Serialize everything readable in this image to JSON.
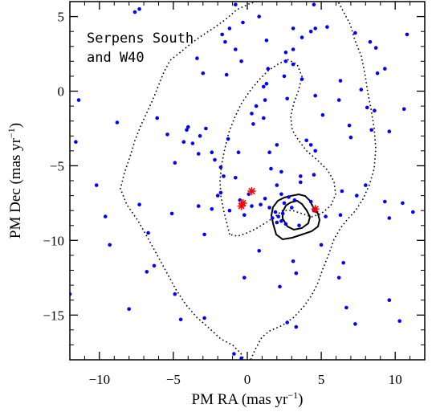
{
  "chart_data": {
    "type": "scatter",
    "xlabel": "PM RA (mas yr",
    "xlabel_sup": "−1",
    "xlabel_end": ")",
    "ylabel": "PM Dec (mas yr",
    "ylabel_sup": "−1",
    "ylabel_end": ")",
    "xlim": [
      -12,
      12
    ],
    "ylim": [
      -18,
      6
    ],
    "x_ticks": [
      -10,
      -5,
      0,
      5,
      10
    ],
    "x_tick_labels": [
      "−10",
      "−5",
      "0",
      "5",
      "10"
    ],
    "y_ticks": [
      -15,
      -10,
      -5,
      0,
      5
    ],
    "y_tick_labels": [
      "−15",
      "−10",
      "−5",
      "0",
      "5"
    ],
    "annotation_lines": [
      "Serpens South",
      "and W40"
    ],
    "colors": {
      "points": "#0000ff",
      "stars": "#ff0000",
      "contour": "#000000"
    },
    "points": [
      [
        -7.3,
        5.5
      ],
      [
        -7.6,
        5.3
      ],
      [
        -0.8,
        5.8
      ],
      [
        -0.3,
        4.6
      ],
      [
        0.8,
        5.0
      ],
      [
        4.5,
        5.8
      ],
      [
        -1.2,
        4.2
      ],
      [
        -1.7,
        3.8
      ],
      [
        -1.5,
        3.3
      ],
      [
        1.3,
        3.4
      ],
      [
        3.1,
        4.2
      ],
      [
        3.7,
        3.6
      ],
      [
        4.3,
        4.0
      ],
      [
        4.6,
        4.2
      ],
      [
        5.4,
        4.3
      ],
      [
        7.3,
        3.9
      ],
      [
        8.3,
        3.3
      ],
      [
        8.7,
        2.9
      ],
      [
        -3.4,
        2.2
      ],
      [
        -0.8,
        2.8
      ],
      [
        2.6,
        2.6
      ],
      [
        3.1,
        2.8
      ],
      [
        2.6,
        2.0
      ],
      [
        2.5,
        1.0
      ],
      [
        3.1,
        1.8
      ],
      [
        3.7,
        0.8
      ],
      [
        6.3,
        0.7
      ],
      [
        8.8,
        1.2
      ],
      [
        9.3,
        1.5
      ],
      [
        10.8,
        3.8
      ],
      [
        -0.4,
        2.0
      ],
      [
        1.4,
        1.5
      ],
      [
        -1.4,
        1.1
      ],
      [
        -3.0,
        1.2
      ],
      [
        1.1,
        0.3
      ],
      [
        1.3,
        0.5
      ],
      [
        1.2,
        -0.6
      ],
      [
        2.7,
        -0.5
      ],
      [
        4.6,
        -0.3
      ],
      [
        5.1,
        -1.6
      ],
      [
        6.2,
        -0.6
      ],
      [
        7.7,
        0.1
      ],
      [
        8.1,
        -1.1
      ],
      [
        8.6,
        -1.3
      ],
      [
        10.6,
        -1.2
      ],
      [
        8.4,
        -2.6
      ],
      [
        9.6,
        -2.7
      ],
      [
        7.0,
        -3.1
      ],
      [
        6.9,
        -2.3
      ],
      [
        -11.4,
        -0.6
      ],
      [
        -11.6,
        -3.4
      ],
      [
        -8.8,
        -2.1
      ],
      [
        -6.1,
        -1.8
      ],
      [
        -5.4,
        -2.9
      ],
      [
        -4.0,
        -2.4
      ],
      [
        -4.3,
        -3.4
      ],
      [
        -3.2,
        -3.0
      ],
      [
        -2.8,
        -2.5
      ],
      [
        -1.3,
        -3.2
      ],
      [
        -0.6,
        -4.1
      ],
      [
        0.4,
        -2.2
      ],
      [
        0.6,
        -1.0
      ],
      [
        0.3,
        -1.5
      ],
      [
        1.1,
        -1.8
      ],
      [
        -2.4,
        -4.1
      ],
      [
        -2.2,
        -4.6
      ],
      [
        1.5,
        -4.1
      ],
      [
        2.0,
        -3.6
      ],
      [
        4.0,
        -3.3
      ],
      [
        4.3,
        -3.6
      ],
      [
        4.6,
        -4.0
      ],
      [
        -3.7,
        -3.5
      ],
      [
        -4.1,
        -2.6
      ],
      [
        -3.3,
        -4.2
      ],
      [
        -4.9,
        -4.8
      ],
      [
        -1.8,
        -5.1
      ],
      [
        -1.6,
        -5.7
      ],
      [
        -0.8,
        -5.8
      ],
      [
        -2.0,
        -7.0
      ],
      [
        -1.8,
        -6.8
      ],
      [
        1.6,
        -5.2
      ],
      [
        2.3,
        -5.4
      ],
      [
        3.6,
        -5.7
      ],
      [
        4.5,
        -5.6
      ],
      [
        3.6,
        -6.1
      ],
      [
        2.0,
        -6.3
      ],
      [
        2.3,
        -6.9
      ],
      [
        1.2,
        -7.2
      ],
      [
        0.3,
        -7.7
      ],
      [
        0.1,
        -6.9
      ],
      [
        -0.5,
        -7.3
      ],
      [
        -0.2,
        -8.3
      ],
      [
        -1.2,
        -8.0
      ],
      [
        -2.4,
        -7.9
      ],
      [
        0.9,
        -7.6
      ],
      [
        1.5,
        -7.8
      ],
      [
        1.9,
        -8.1
      ],
      [
        2.1,
        -8.4
      ],
      [
        2.3,
        -8.7
      ],
      [
        2.0,
        -8.8
      ],
      [
        2.6,
        -8.9
      ],
      [
        2.5,
        -7.5
      ],
      [
        2.8,
        -7.1
      ],
      [
        3.2,
        -7.3
      ],
      [
        3.0,
        -7.8
      ],
      [
        2.4,
        -8.2
      ],
      [
        1.7,
        -8.5
      ],
      [
        3.5,
        -9.0
      ],
      [
        -3.3,
        -7.7
      ],
      [
        -5.1,
        -8.2
      ],
      [
        -7.3,
        -7.6
      ],
      [
        -9.6,
        -8.4
      ],
      [
        -10.2,
        -6.3
      ],
      [
        -9.3,
        -10.3
      ],
      [
        -6.7,
        -9.5
      ],
      [
        -6.3,
        -11.7
      ],
      [
        -6.8,
        -12.1
      ],
      [
        -2.9,
        -9.6
      ],
      [
        0.8,
        -10.7
      ],
      [
        3.1,
        -11.4
      ],
      [
        3.3,
        -12.2
      ],
      [
        5.0,
        -10.3
      ],
      [
        6.5,
        -11.5
      ],
      [
        6.2,
        -12.5
      ],
      [
        6.7,
        -14.5
      ],
      [
        7.3,
        -15.6
      ],
      [
        9.6,
        -14.0
      ],
      [
        10.3,
        -15.4
      ],
      [
        11.2,
        -8.1
      ],
      [
        10.5,
        -7.5
      ],
      [
        9.3,
        -7.4
      ],
      [
        9.6,
        -8.5
      ],
      [
        6.3,
        -8.3
      ],
      [
        7.4,
        -7.0
      ],
      [
        6.4,
        -6.7
      ],
      [
        8.0,
        -6.3
      ],
      [
        -4.9,
        -13.6
      ],
      [
        -8.0,
        -14.6
      ],
      [
        -12.0,
        -13.6
      ],
      [
        -4.5,
        -15.3
      ],
      [
        -2.9,
        -15.2
      ],
      [
        2.7,
        -15.5
      ],
      [
        3.3,
        -15.8
      ],
      [
        -0.9,
        -17.6
      ],
      [
        -0.4,
        -17.9
      ],
      [
        4.3,
        -7.4
      ],
      [
        4.5,
        -8.0
      ],
      [
        5.3,
        -8.4
      ],
      [
        2.2,
        -13.1
      ],
      [
        -0.2,
        -12.5
      ]
    ],
    "red_stars": [
      [
        -0.3,
        -7.5
      ],
      [
        -0.4,
        -7.7
      ],
      [
        0.3,
        -6.7
      ],
      [
        4.6,
        -7.9
      ]
    ]
  }
}
